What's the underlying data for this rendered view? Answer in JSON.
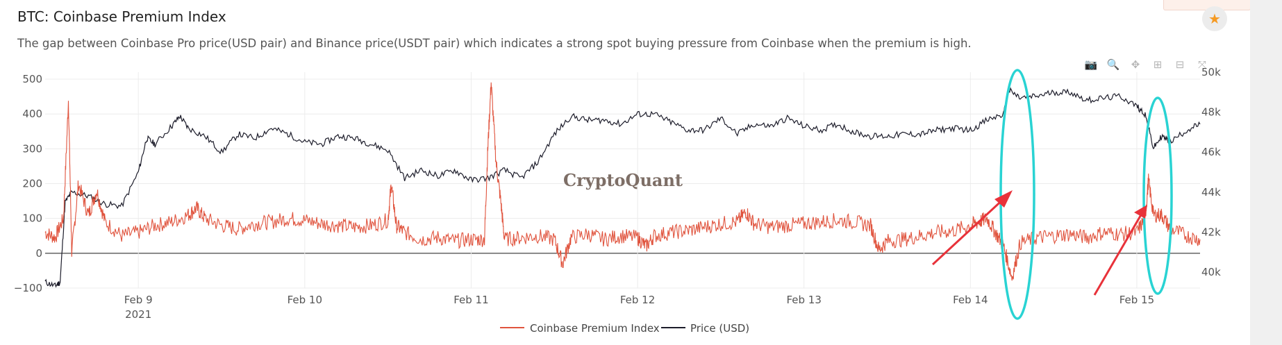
{
  "header": {
    "title": "BTC: Coinbase Premium Index",
    "description": "The gap between Coinbase Pro price(USD pair) and Binance price(USDT pair) which indicates a strong spot buying pressure from Coinbase when the premium is high."
  },
  "watermark": "CryptoQuant",
  "modebar": [
    {
      "name": "camera-icon",
      "glyph": "📷"
    },
    {
      "name": "zoom-icon",
      "glyph": "🔍"
    },
    {
      "name": "pan-icon",
      "glyph": "✥"
    },
    {
      "name": "zoom-in-icon",
      "glyph": "⊞"
    },
    {
      "name": "zoom-out-icon",
      "glyph": "⊟"
    },
    {
      "name": "autoscale-icon",
      "glyph": "⤧"
    }
  ],
  "colors": {
    "premium": "#e0533d",
    "price": "#1c1c2a",
    "annotation_ellipse": "#29d3d3",
    "annotation_arrow": "#e8323a",
    "accent": "#f59a23"
  },
  "chart_data": {
    "type": "line",
    "x_tick_labels": [
      "Feb 9",
      "Feb 10",
      "Feb 11",
      "Feb 12",
      "Feb 13",
      "Feb 14",
      "Feb 15"
    ],
    "x_year_label": "2021",
    "y_left_ticks": [
      -100,
      0,
      100,
      200,
      300,
      400,
      500
    ],
    "y_left_labels": [
      "−100",
      "0",
      "100",
      "200",
      "300",
      "400",
      "500"
    ],
    "y_left_range": [
      -100,
      520
    ],
    "y_right_ticks": [
      40000,
      42000,
      44000,
      46000,
      48000,
      50000
    ],
    "y_right_labels": [
      "40k",
      "42k",
      "44k",
      "46k",
      "48k",
      "50k"
    ],
    "y_right_range": [
      39200,
      50000
    ],
    "x_range": [
      8.44,
      15.38
    ],
    "legend": [
      "Coinbase Premium Index",
      "Price (USD)"
    ],
    "series": [
      {
        "name": "Coinbase Premium Index",
        "axis": "left",
        "points": [
          [
            8.44,
            60
          ],
          [
            8.5,
            45
          ],
          [
            8.55,
            100
          ],
          [
            8.58,
            440
          ],
          [
            8.6,
            0
          ],
          [
            8.64,
            200
          ],
          [
            8.7,
            110
          ],
          [
            8.75,
            180
          ],
          [
            8.8,
            90
          ],
          [
            8.9,
            50
          ],
          [
            9.0,
            60
          ],
          [
            9.1,
            80
          ],
          [
            9.2,
            90
          ],
          [
            9.3,
            110
          ],
          [
            9.35,
            130
          ],
          [
            9.4,
            100
          ],
          [
            9.5,
            80
          ],
          [
            9.6,
            70
          ],
          [
            9.7,
            85
          ],
          [
            9.8,
            90
          ],
          [
            9.9,
            100
          ],
          [
            10.0,
            95
          ],
          [
            10.1,
            85
          ],
          [
            10.2,
            80
          ],
          [
            10.3,
            75
          ],
          [
            10.4,
            80
          ],
          [
            10.5,
            95
          ],
          [
            10.52,
            200
          ],
          [
            10.55,
            80
          ],
          [
            10.6,
            60
          ],
          [
            10.7,
            40
          ],
          [
            10.8,
            45
          ],
          [
            10.9,
            35
          ],
          [
            11.0,
            40
          ],
          [
            11.08,
            40
          ],
          [
            11.1,
            300
          ],
          [
            11.12,
            490
          ],
          [
            11.15,
            260
          ],
          [
            11.18,
            140
          ],
          [
            11.2,
            40
          ],
          [
            11.3,
            45
          ],
          [
            11.4,
            50
          ],
          [
            11.5,
            40
          ],
          [
            11.55,
            -30
          ],
          [
            11.6,
            45
          ],
          [
            11.7,
            55
          ],
          [
            11.8,
            40
          ],
          [
            11.9,
            50
          ],
          [
            12.0,
            45
          ],
          [
            12.05,
            20
          ],
          [
            12.1,
            50
          ],
          [
            12.2,
            60
          ],
          [
            12.3,
            65
          ],
          [
            12.4,
            75
          ],
          [
            12.5,
            85
          ],
          [
            12.6,
            90
          ],
          [
            12.65,
            120
          ],
          [
            12.7,
            85
          ],
          [
            12.8,
            75
          ],
          [
            12.9,
            80
          ],
          [
            13.0,
            85
          ],
          [
            13.1,
            90
          ],
          [
            13.2,
            95
          ],
          [
            13.3,
            90
          ],
          [
            13.4,
            80
          ],
          [
            13.45,
            10
          ],
          [
            13.5,
            35
          ],
          [
            13.6,
            40
          ],
          [
            13.7,
            50
          ],
          [
            13.8,
            60
          ],
          [
            13.9,
            65
          ],
          [
            14.0,
            80
          ],
          [
            14.05,
            90
          ],
          [
            14.1,
            100
          ],
          [
            14.15,
            60
          ],
          [
            14.2,
            20
          ],
          [
            14.25,
            -70
          ],
          [
            14.3,
            30
          ],
          [
            14.4,
            45
          ],
          [
            14.5,
            50
          ],
          [
            14.6,
            55
          ],
          [
            14.7,
            45
          ],
          [
            14.8,
            60
          ],
          [
            14.9,
            55
          ],
          [
            15.0,
            60
          ],
          [
            15.05,
            100
          ],
          [
            15.07,
            210
          ],
          [
            15.1,
            110
          ],
          [
            15.15,
            110
          ],
          [
            15.2,
            70
          ],
          [
            15.3,
            50
          ],
          [
            15.38,
            40
          ]
        ]
      },
      {
        "name": "Price (USD)",
        "axis": "right",
        "points": [
          [
            8.44,
            39500
          ],
          [
            8.5,
            39300
          ],
          [
            8.53,
            39500
          ],
          [
            8.56,
            43500
          ],
          [
            8.6,
            44000
          ],
          [
            8.7,
            43800
          ],
          [
            8.8,
            43400
          ],
          [
            8.9,
            43300
          ],
          [
            9.0,
            45000
          ],
          [
            9.05,
            46700
          ],
          [
            9.1,
            46400
          ],
          [
            9.2,
            47300
          ],
          [
            9.25,
            47800
          ],
          [
            9.3,
            47200
          ],
          [
            9.4,
            46800
          ],
          [
            9.5,
            46000
          ],
          [
            9.6,
            46900
          ],
          [
            9.7,
            46700
          ],
          [
            9.8,
            47200
          ],
          [
            9.9,
            46900
          ],
          [
            10.0,
            46500
          ],
          [
            10.1,
            46400
          ],
          [
            10.2,
            46800
          ],
          [
            10.3,
            46700
          ],
          [
            10.4,
            46400
          ],
          [
            10.5,
            46100
          ],
          [
            10.6,
            44700
          ],
          [
            10.7,
            45100
          ],
          [
            10.8,
            44800
          ],
          [
            10.9,
            45100
          ],
          [
            11.0,
            44600
          ],
          [
            11.1,
            44700
          ],
          [
            11.2,
            45100
          ],
          [
            11.3,
            44700
          ],
          [
            11.4,
            45500
          ],
          [
            11.5,
            46900
          ],
          [
            11.6,
            47800
          ],
          [
            11.7,
            47600
          ],
          [
            11.8,
            47600
          ],
          [
            11.9,
            47400
          ],
          [
            12.0,
            47900
          ],
          [
            12.1,
            47900
          ],
          [
            12.2,
            47500
          ],
          [
            12.3,
            47100
          ],
          [
            12.4,
            47100
          ],
          [
            12.5,
            47700
          ],
          [
            12.6,
            46900
          ],
          [
            12.7,
            47400
          ],
          [
            12.8,
            47300
          ],
          [
            12.9,
            47700
          ],
          [
            13.0,
            47300
          ],
          [
            13.1,
            47100
          ],
          [
            13.2,
            47400
          ],
          [
            13.3,
            47000
          ],
          [
            13.4,
            46800
          ],
          [
            13.5,
            46800
          ],
          [
            13.6,
            46900
          ],
          [
            13.7,
            46900
          ],
          [
            13.8,
            47100
          ],
          [
            13.9,
            47200
          ],
          [
            14.0,
            47100
          ],
          [
            14.1,
            47600
          ],
          [
            14.2,
            47900
          ],
          [
            14.23,
            49100
          ],
          [
            14.3,
            48700
          ],
          [
            14.4,
            48800
          ],
          [
            14.5,
            49000
          ],
          [
            14.6,
            49000
          ],
          [
            14.7,
            48600
          ],
          [
            14.8,
            48700
          ],
          [
            14.9,
            48800
          ],
          [
            15.0,
            48300
          ],
          [
            15.05,
            47900
          ],
          [
            15.1,
            46200
          ],
          [
            15.15,
            46800
          ],
          [
            15.2,
            46500
          ],
          [
            15.3,
            47100
          ],
          [
            15.38,
            47400
          ]
        ]
      }
    ]
  }
}
